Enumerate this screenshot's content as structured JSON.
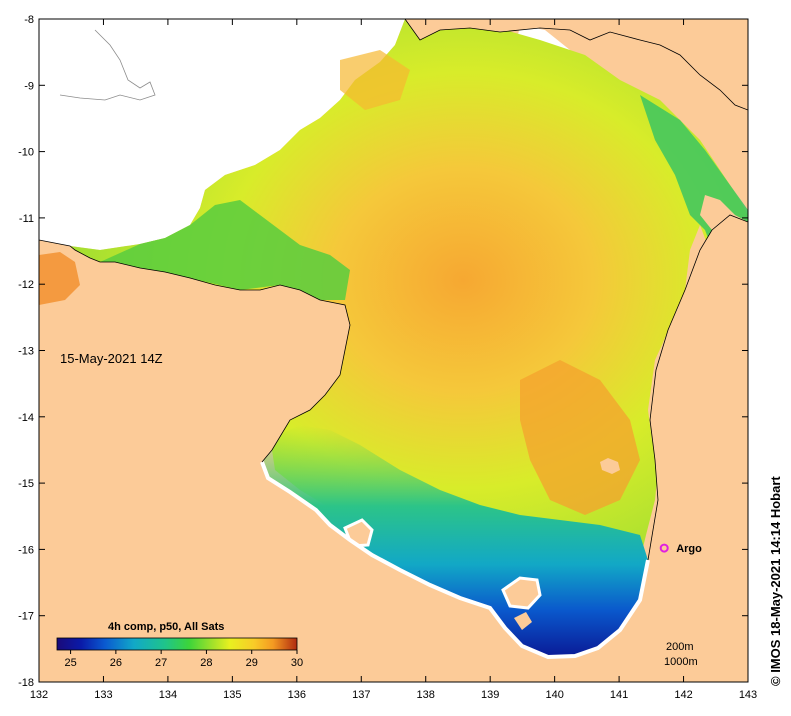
{
  "map": {
    "timestamp_label": "15-May-2021 14Z",
    "credit": "© IMOS 18-May-2021 14:14 Hobart",
    "x_ticks": [
      "132",
      "133",
      "134",
      "135",
      "136",
      "137",
      "138",
      "139",
      "140",
      "141",
      "142",
      "143"
    ],
    "y_ticks": [
      "-8",
      "-9",
      "-10",
      "-11",
      "-12",
      "-13",
      "-14",
      "-15",
      "-16",
      "-17",
      "-18"
    ],
    "lon_range": [
      132,
      143
    ],
    "lat_range": [
      -18,
      -8
    ],
    "legend": {
      "title": "4h comp, p50, All Sats",
      "ticks": [
        "25",
        "26",
        "27",
        "28",
        "29",
        "30"
      ],
      "range": [
        24.7,
        30
      ]
    },
    "isobaths": {
      "shallow": "200m",
      "deep": "1000m"
    },
    "argo": {
      "label": "Argo",
      "lon": 141.7,
      "lat": -15.98,
      "color": "#e020e0"
    },
    "colors": {
      "land": "#fccb98",
      "no_data": "#ffffff",
      "frame": "#000000"
    }
  }
}
